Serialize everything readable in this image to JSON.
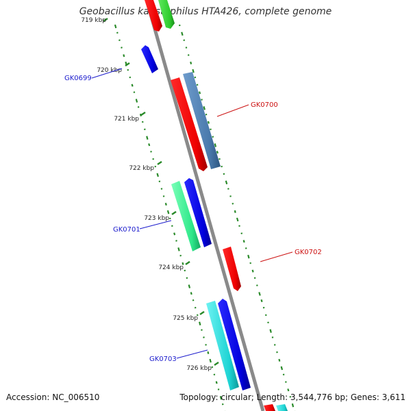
{
  "title": "Geobacillus kaustophilus HTA426, complete genome",
  "accession": "Accession: NC_006510",
  "summary": "Topology: circular; Length: 3,544,776 bp; Genes: 3,611",
  "ticks": [
    {
      "kbp": 719,
      "label": "719 kbp"
    },
    {
      "kbp": 720,
      "label": "720 kbp"
    },
    {
      "kbp": 721,
      "label": "721 kbp"
    },
    {
      "kbp": 722,
      "label": "722 kbp"
    },
    {
      "kbp": 723,
      "label": "723 kbp"
    },
    {
      "kbp": 724,
      "label": "724 kbp"
    },
    {
      "kbp": 725,
      "label": "725 kbp"
    },
    {
      "kbp": 726,
      "label": "726 kbp"
    }
  ],
  "gene_labels": [
    {
      "name": "GK0699",
      "color": "#1a1acc"
    },
    {
      "name": "GK0700",
      "color": "#cc1111"
    },
    {
      "name": "GK0701",
      "color": "#1a1acc"
    },
    {
      "name": "GK0702",
      "color": "#cc1111"
    },
    {
      "name": "GK0703",
      "color": "#1a1acc"
    }
  ],
  "colors": {
    "backbone": "#8a8a8a",
    "forward_cds": "#ff0000",
    "reverse_cds": "#0000ee",
    "steel": "#4f7fb0",
    "green": "#33cc33",
    "spring_green": "#2ee88a",
    "cyan": "#1ed4d4",
    "gc_dots": "#2a8a2a",
    "tick_label": "#222222"
  }
}
